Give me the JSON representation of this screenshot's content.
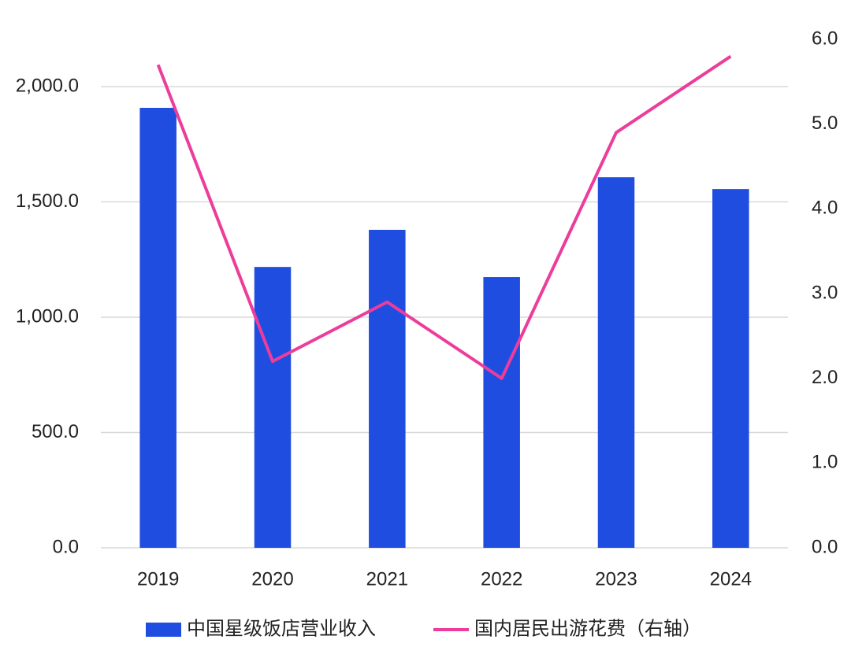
{
  "chart_data": {
    "type": "bar_line",
    "categories": [
      "2019",
      "2020",
      "2021",
      "2022",
      "2023",
      "2024"
    ],
    "series": [
      {
        "name": "中国星级饭店营业收入",
        "type": "bar",
        "color": "#1f4de0",
        "values": [
          1908,
          1218,
          1379,
          1174,
          1607,
          1556
        ]
      },
      {
        "name": "国内居民出游花费（右轴）",
        "type": "line",
        "axis": "y2",
        "color": "#ec3d9b",
        "values": [
          5.7,
          2.2,
          2.9,
          2.0,
          4.9,
          5.8
        ]
      }
    ],
    "ylim": [
      0,
      2205
    ],
    "yticks": [
      {
        "value": 0,
        "label": "0.0"
      },
      {
        "value": 500,
        "label": "500.0"
      },
      {
        "value": 1000,
        "label": "1,000.0"
      },
      {
        "value": 1500,
        "label": "1,500.0"
      },
      {
        "value": 2000,
        "label": "2,000.0"
      }
    ],
    "y2lim": [
      0,
      6
    ],
    "y2ticks": [
      {
        "value": 0,
        "label": "0.0"
      },
      {
        "value": 1,
        "label": "1.0"
      },
      {
        "value": 2,
        "label": "2.0"
      },
      {
        "value": 3,
        "label": "3.0"
      },
      {
        "value": 4,
        "label": "4.0"
      },
      {
        "value": 5,
        "label": "5.0"
      },
      {
        "value": 6,
        "label": "6.0"
      }
    ],
    "grid": true,
    "legend": "bottom"
  }
}
